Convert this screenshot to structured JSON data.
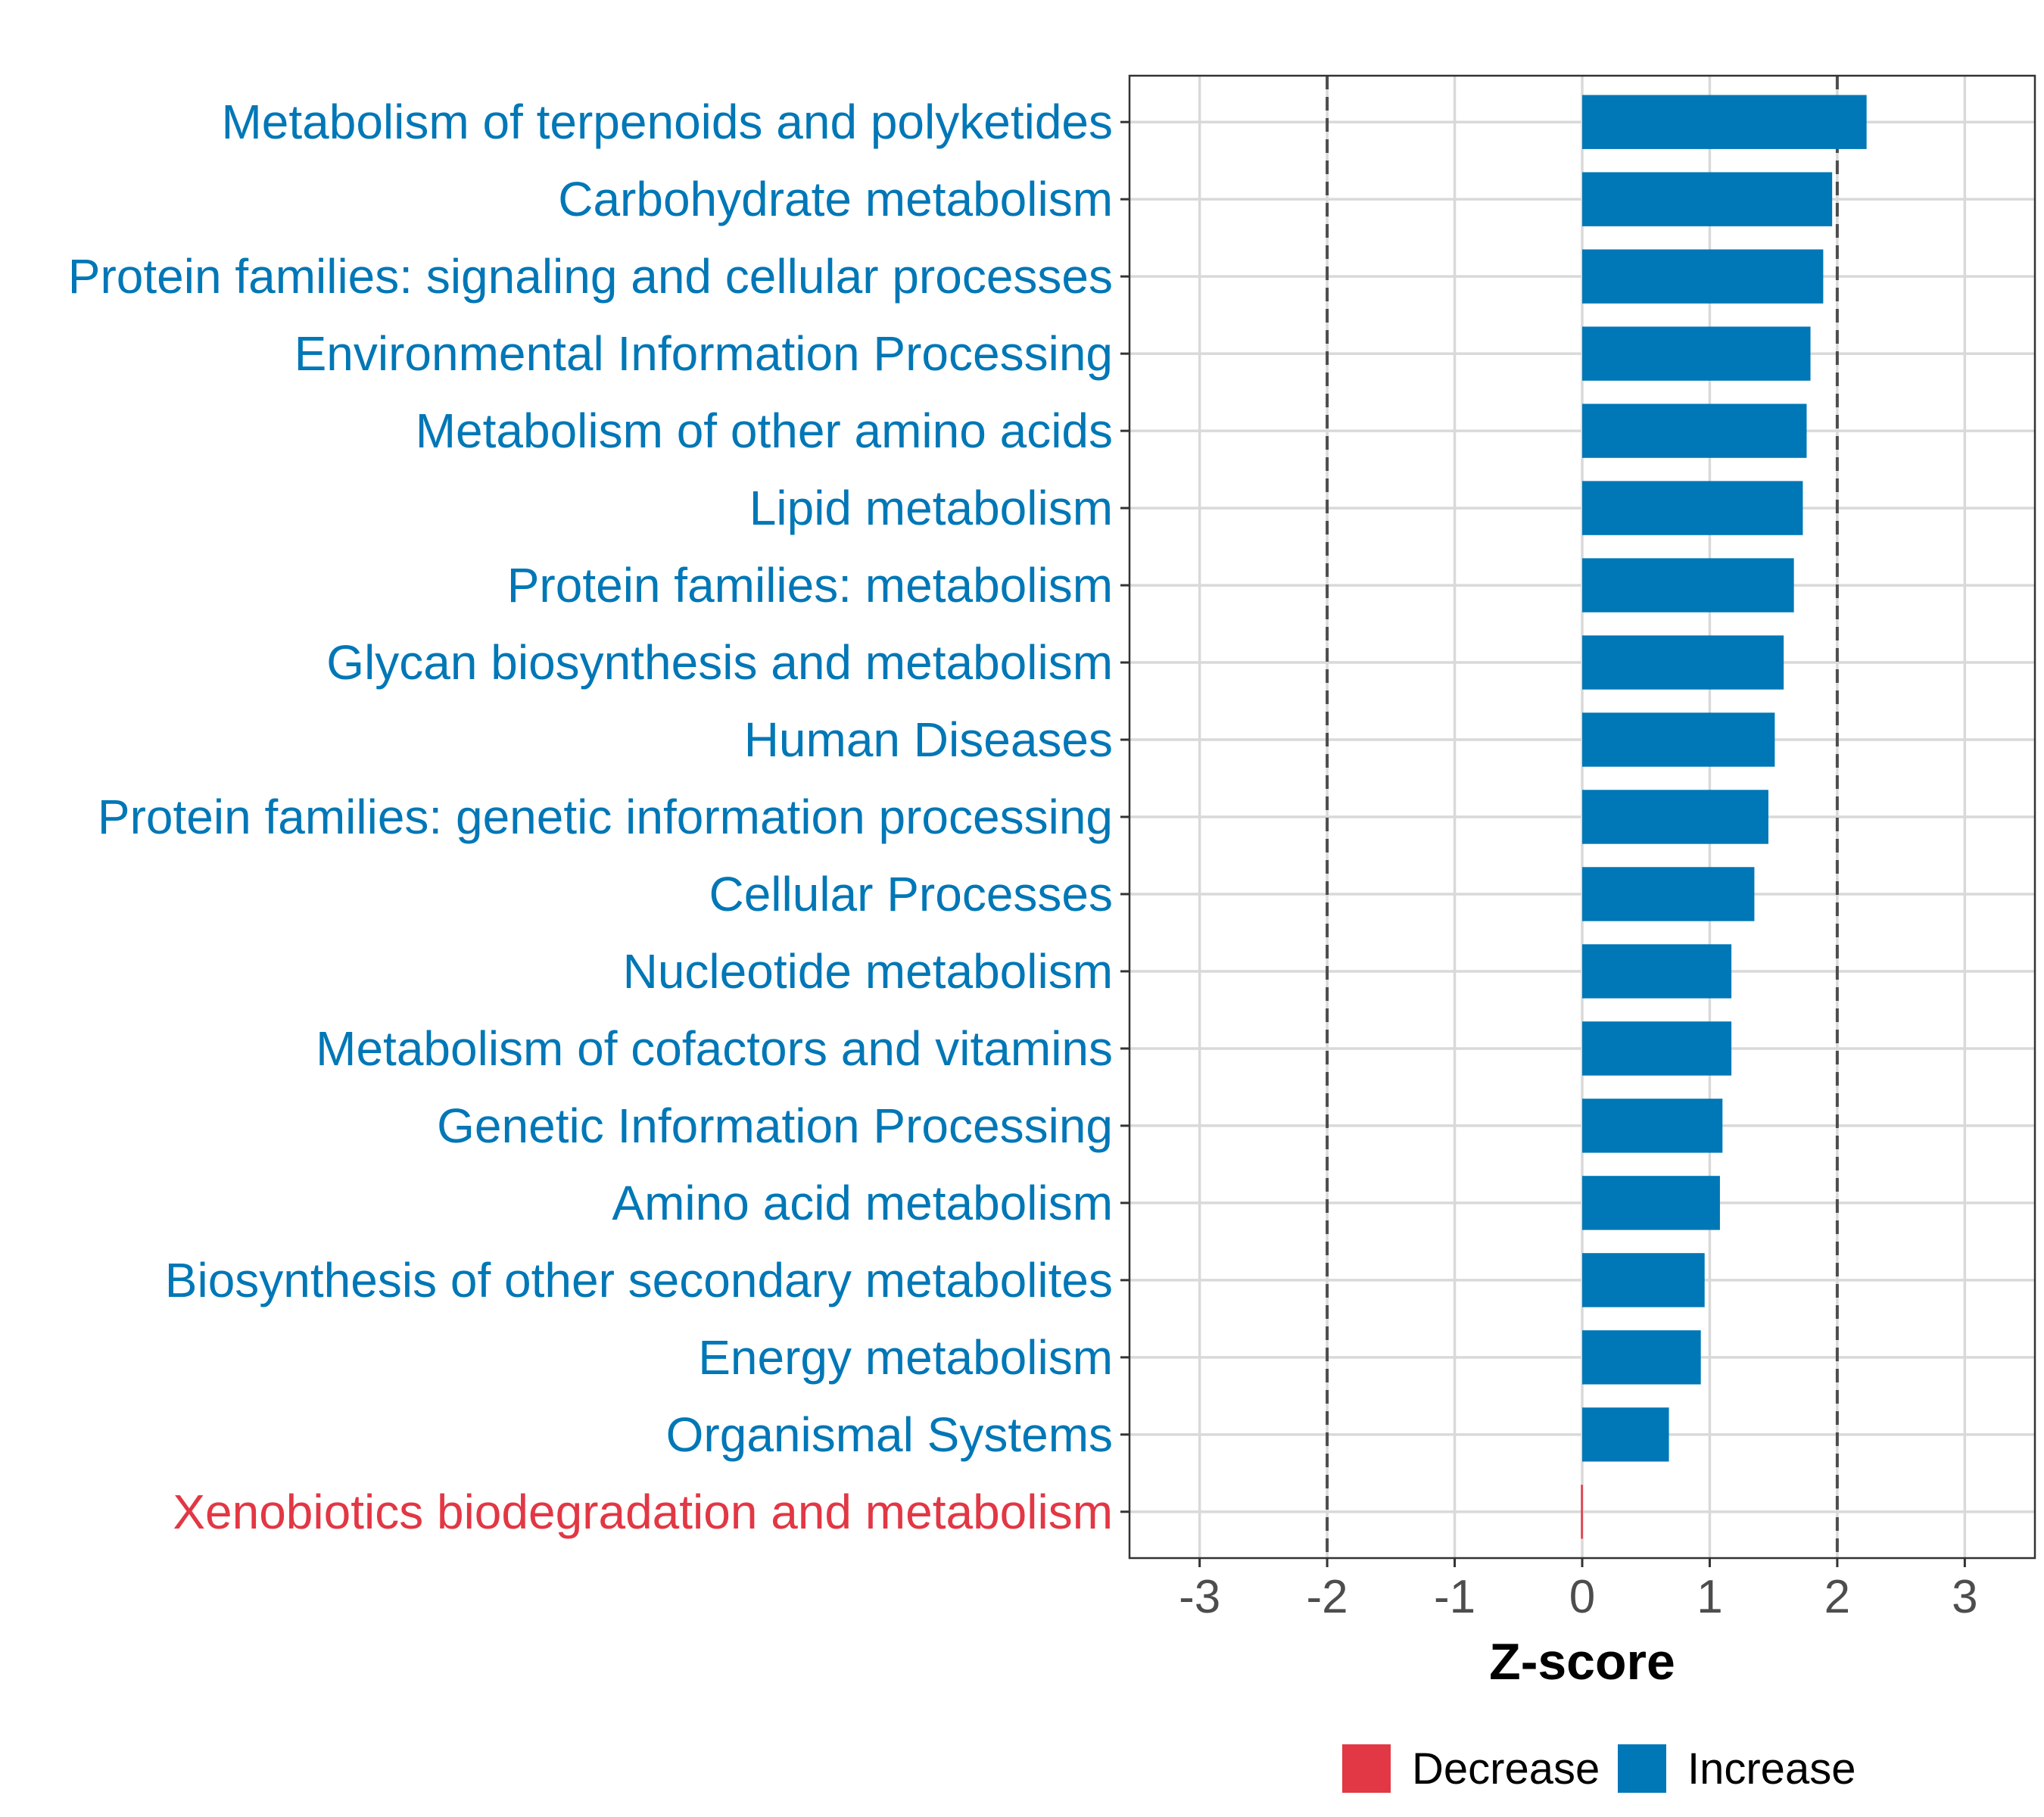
{
  "chart_data": {
    "type": "bar",
    "orientation": "horizontal",
    "title": "",
    "xlabel": "Z-score",
    "ylabel": "",
    "xlim": [
      -3.55,
      3.55
    ],
    "xticks": [
      -3,
      -2,
      -1,
      0,
      1,
      2,
      3
    ],
    "xtick_labels": [
      "-3",
      "-2",
      "-1",
      "0",
      "1",
      "2",
      "3"
    ],
    "reference_lines": [
      -2,
      2
    ],
    "grid": true,
    "legend_position": "bottom",
    "categories": [
      "Metabolism of terpenoids and polyketides",
      "Carbohydrate metabolism",
      "Protein families: signaling and cellular processes",
      "Environmental Information Processing",
      "Metabolism of other amino acids",
      "Lipid metabolism",
      "Protein families: metabolism",
      "Glycan biosynthesis and metabolism",
      "Human Diseases",
      "Protein families: genetic information processing",
      "Cellular Processes",
      "Nucleotide metabolism",
      "Metabolism of cofactors and vitamins",
      "Genetic Information Processing",
      "Amino acid metabolism",
      "Biosynthesis of other secondary metabolites",
      "Energy metabolism",
      "Organismal Systems",
      "Xenobiotics biodegradation and metabolism"
    ],
    "values": [
      2.23,
      1.96,
      1.89,
      1.79,
      1.76,
      1.73,
      1.66,
      1.58,
      1.51,
      1.46,
      1.35,
      1.17,
      1.17,
      1.1,
      1.08,
      0.96,
      0.93,
      0.68,
      -0.01
    ],
    "groups": [
      "Increase",
      "Increase",
      "Increase",
      "Increase",
      "Increase",
      "Increase",
      "Increase",
      "Increase",
      "Increase",
      "Increase",
      "Increase",
      "Increase",
      "Increase",
      "Increase",
      "Increase",
      "Increase",
      "Increase",
      "Increase",
      "Decrease"
    ],
    "legend": [
      {
        "name": "Decrease",
        "color": "#E23744"
      },
      {
        "name": "Increase",
        "color": "#0077B6"
      }
    ]
  }
}
